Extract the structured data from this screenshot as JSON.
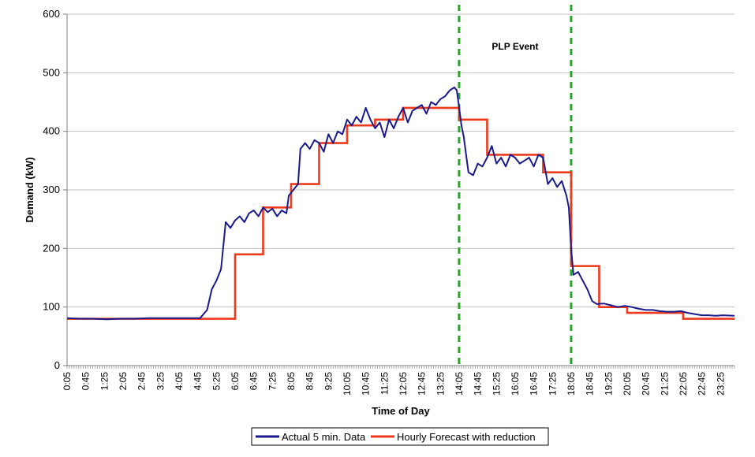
{
  "chart_data": {
    "type": "line",
    "title": "",
    "xlabel": "Time of Day",
    "ylabel": "Demand (kW)",
    "ylim": [
      0,
      600
    ],
    "yticks": [
      "0",
      "100",
      "200",
      "300",
      "400",
      "500",
      "600"
    ],
    "grid": "horizontal",
    "x_tick_labels": [
      "0:05",
      "0:45",
      "1:25",
      "2:05",
      "2:45",
      "3:25",
      "4:05",
      "4:45",
      "5:25",
      "6:05",
      "6:45",
      "7:25",
      "8:05",
      "8:45",
      "9:25",
      "10:05",
      "10:45",
      "11:25",
      "12:05",
      "12:45",
      "13:25",
      "14:05",
      "14:45",
      "15:25",
      "16:05",
      "16:45",
      "17:25",
      "18:05",
      "18:45",
      "19:25",
      "20:05",
      "20:45",
      "21:25",
      "22:05",
      "22:45",
      "23:25"
    ],
    "annotations": [
      {
        "text": "PLP Event"
      }
    ],
    "event_lines": [
      {
        "time": "14:05",
        "color": "#2ca02c"
      },
      {
        "time": "18:05",
        "color": "#2ca02c"
      }
    ],
    "legend_position": "bottom",
    "series": [
      {
        "name": "Actual 5 min. Data",
        "color": "#1a1a8c",
        "points": [
          [
            "0:05",
            81
          ],
          [
            "0:30",
            80
          ],
          [
            "1:00",
            80
          ],
          [
            "1:30",
            79
          ],
          [
            "2:00",
            80
          ],
          [
            "2:30",
            80
          ],
          [
            "3:00",
            81
          ],
          [
            "3:30",
            81
          ],
          [
            "4:00",
            81
          ],
          [
            "4:30",
            81
          ],
          [
            "4:50",
            81
          ],
          [
            "5:05",
            95
          ],
          [
            "5:15",
            130
          ],
          [
            "5:25",
            145
          ],
          [
            "5:35",
            165
          ],
          [
            "5:45",
            245
          ],
          [
            "5:55",
            235
          ],
          [
            "6:05",
            248
          ],
          [
            "6:15",
            255
          ],
          [
            "6:25",
            245
          ],
          [
            "6:35",
            260
          ],
          [
            "6:45",
            265
          ],
          [
            "6:55",
            255
          ],
          [
            "7:05",
            270
          ],
          [
            "7:15",
            262
          ],
          [
            "7:25",
            268
          ],
          [
            "7:35",
            255
          ],
          [
            "7:45",
            265
          ],
          [
            "7:55",
            260
          ],
          [
            "8:00",
            290
          ],
          [
            "8:10",
            300
          ],
          [
            "8:20",
            310
          ],
          [
            "8:25",
            370
          ],
          [
            "8:35",
            380
          ],
          [
            "8:45",
            370
          ],
          [
            "8:55",
            385
          ],
          [
            "9:05",
            380
          ],
          [
            "9:15",
            365
          ],
          [
            "9:25",
            395
          ],
          [
            "9:35",
            380
          ],
          [
            "9:45",
            400
          ],
          [
            "9:55",
            395
          ],
          [
            "10:05",
            420
          ],
          [
            "10:15",
            410
          ],
          [
            "10:25",
            425
          ],
          [
            "10:35",
            415
          ],
          [
            "10:45",
            440
          ],
          [
            "10:55",
            420
          ],
          [
            "11:05",
            405
          ],
          [
            "11:15",
            415
          ],
          [
            "11:25",
            390
          ],
          [
            "11:35",
            420
          ],
          [
            "11:45",
            405
          ],
          [
            "11:55",
            425
          ],
          [
            "12:05",
            440
          ],
          [
            "12:15",
            415
          ],
          [
            "12:25",
            435
          ],
          [
            "12:35",
            440
          ],
          [
            "12:45",
            445
          ],
          [
            "12:55",
            430
          ],
          [
            "13:05",
            450
          ],
          [
            "13:15",
            445
          ],
          [
            "13:25",
            455
          ],
          [
            "13:35",
            460
          ],
          [
            "13:45",
            470
          ],
          [
            "13:55",
            475
          ],
          [
            "14:00",
            470
          ],
          [
            "14:05",
            440
          ],
          [
            "14:10",
            410
          ],
          [
            "14:15",
            390
          ],
          [
            "14:20",
            360
          ],
          [
            "14:25",
            330
          ],
          [
            "14:35",
            325
          ],
          [
            "14:45",
            345
          ],
          [
            "14:55",
            340
          ],
          [
            "15:05",
            355
          ],
          [
            "15:15",
            375
          ],
          [
            "15:25",
            345
          ],
          [
            "15:35",
            355
          ],
          [
            "15:45",
            340
          ],
          [
            "15:55",
            360
          ],
          [
            "16:05",
            355
          ],
          [
            "16:15",
            345
          ],
          [
            "16:25",
            350
          ],
          [
            "16:35",
            355
          ],
          [
            "16:45",
            340
          ],
          [
            "16:55",
            360
          ],
          [
            "17:05",
            355
          ],
          [
            "17:15",
            310
          ],
          [
            "17:25",
            320
          ],
          [
            "17:35",
            305
          ],
          [
            "17:45",
            315
          ],
          [
            "17:55",
            290
          ],
          [
            "18:00",
            270
          ],
          [
            "18:05",
            200
          ],
          [
            "18:10",
            155
          ],
          [
            "18:20",
            160
          ],
          [
            "18:30",
            145
          ],
          [
            "18:40",
            130
          ],
          [
            "18:45",
            120
          ],
          [
            "18:50",
            110
          ],
          [
            "19:00",
            105
          ],
          [
            "19:15",
            106
          ],
          [
            "19:30",
            103
          ],
          [
            "19:45",
            100
          ],
          [
            "20:00",
            102
          ],
          [
            "20:15",
            100
          ],
          [
            "20:30",
            97
          ],
          [
            "20:45",
            95
          ],
          [
            "21:00",
            95
          ],
          [
            "21:15",
            93
          ],
          [
            "21:30",
            92
          ],
          [
            "21:45",
            92
          ],
          [
            "22:00",
            93
          ],
          [
            "22:15",
            90
          ],
          [
            "22:30",
            88
          ],
          [
            "22:45",
            86
          ],
          [
            "23:00",
            86
          ],
          [
            "23:15",
            85
          ],
          [
            "23:30",
            86
          ],
          [
            "23:55",
            85
          ]
        ]
      },
      {
        "name": "Hourly Forecast with reduction",
        "color": "#ee3a1c",
        "steps": [
          [
            "0:05",
            80
          ],
          [
            "6:05",
            190
          ],
          [
            "7:05",
            270
          ],
          [
            "8:05",
            310
          ],
          [
            "9:05",
            380
          ],
          [
            "10:05",
            410
          ],
          [
            "11:05",
            420
          ],
          [
            "12:05",
            440
          ],
          [
            "13:05",
            440
          ],
          [
            "14:05",
            420
          ],
          [
            "15:05",
            360
          ],
          [
            "16:05",
            360
          ],
          [
            "17:05",
            330
          ],
          [
            "18:05",
            170
          ],
          [
            "19:05",
            100
          ],
          [
            "20:05",
            90
          ],
          [
            "21:05",
            90
          ],
          [
            "22:05",
            80
          ],
          [
            "23:05",
            80
          ]
        ],
        "end": "23:55"
      }
    ]
  }
}
